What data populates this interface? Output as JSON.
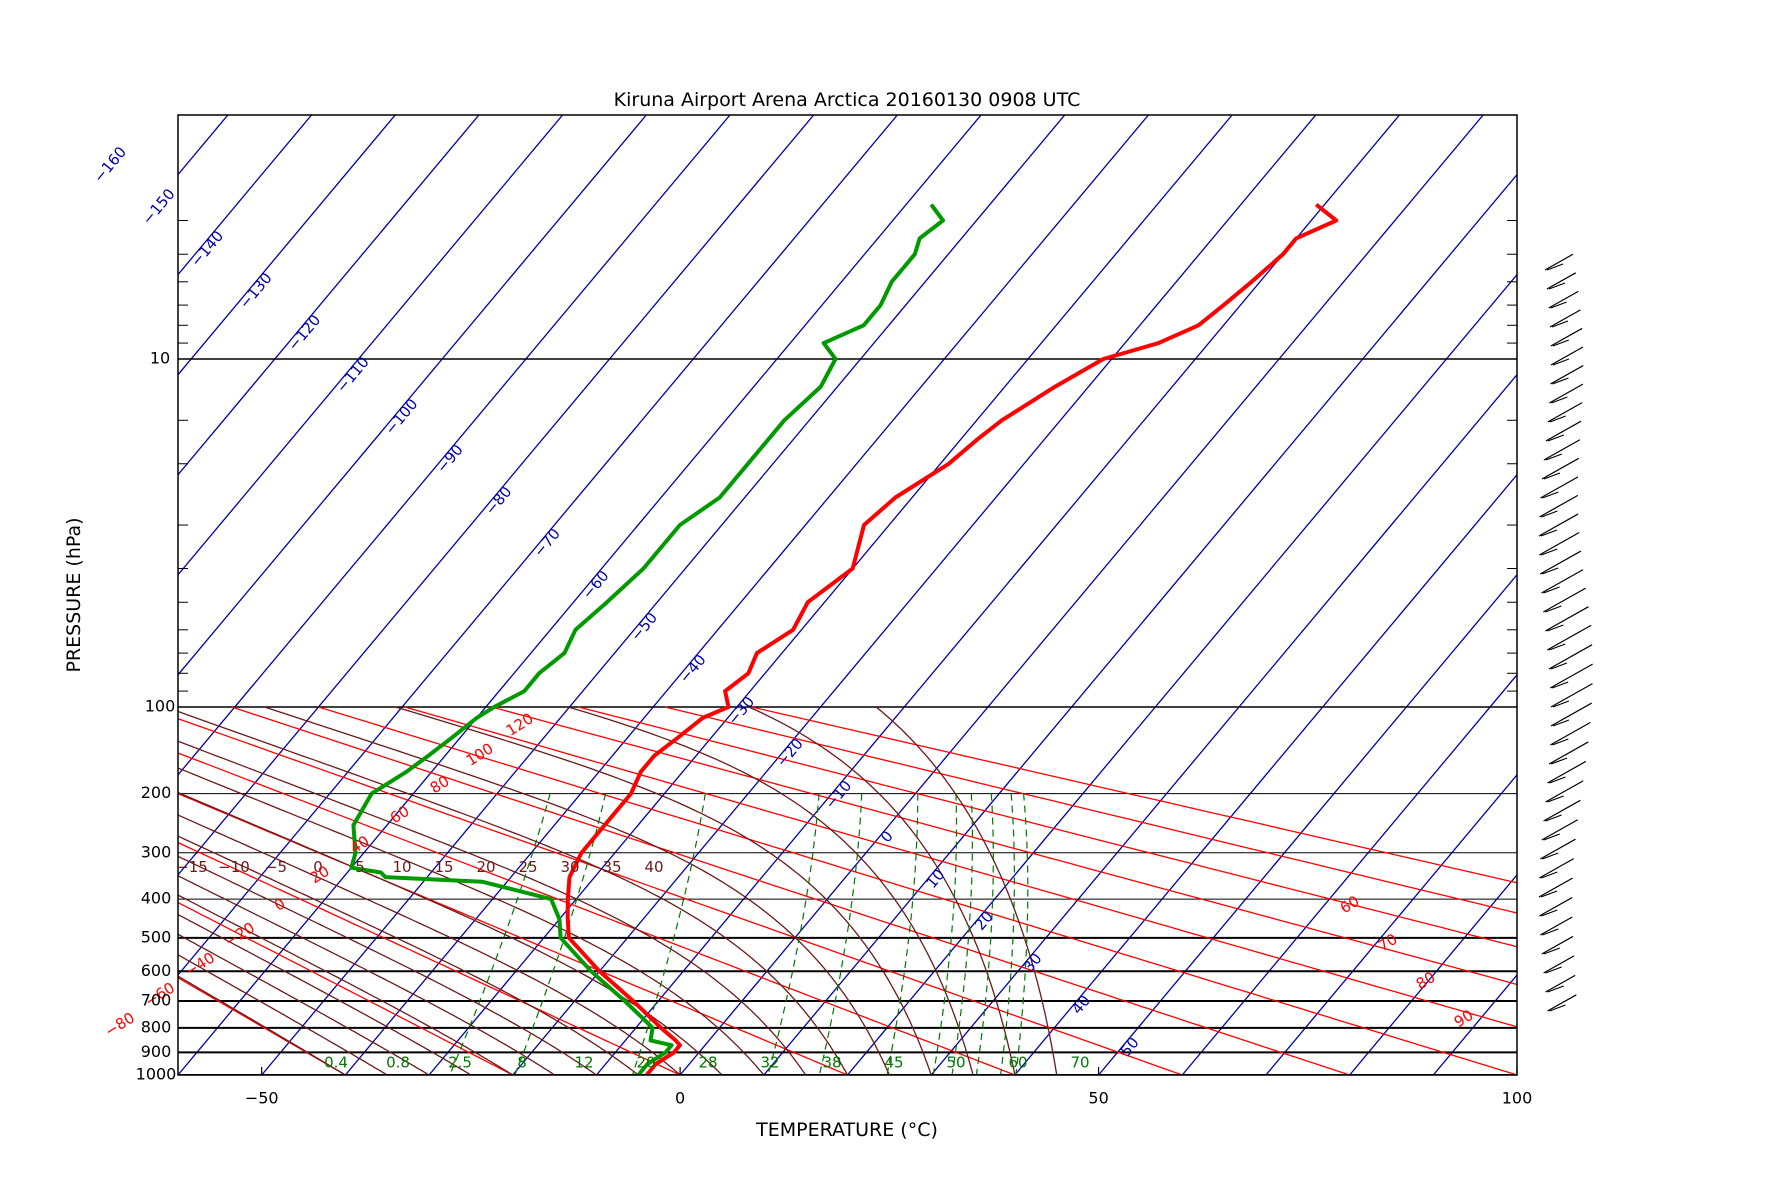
{
  "chart_data": {
    "type": "line",
    "title": "Kiruna Airport Arena Arctica 20160130 0908 UTC",
    "xlabel": "TEMPERATURE (°C)",
    "ylabel": "PRESSURE  (hPa)",
    "xlim": [
      -60,
      100
    ],
    "x_ticks": [
      "-50",
      "0",
      "50",
      "100"
    ],
    "y_scale": "log (upper, 3.3-100 hPa) + pressure^0.286 (lower, 100-1000 hPa)",
    "y_ticks_upper": [
      "10",
      "100"
    ],
    "y_ticks_lower": [
      "200",
      "300",
      "400",
      "500",
      "600",
      "700",
      "800",
      "900",
      "1000"
    ],
    "isotherm_labels": [
      "-160",
      "-150",
      "-140",
      "-130",
      "-120",
      "-110",
      "-100",
      "-90",
      "-80",
      "-70",
      "-60",
      "-50",
      "-40",
      "-30",
      "-20",
      "-10",
      "0",
      "10",
      "20",
      "30",
      "40",
      "50"
    ],
    "isotherm_step": 10,
    "dry_adiabat_labels": [
      "120",
      "100",
      "80",
      "60",
      "40",
      "20",
      "0",
      "-20",
      "-40",
      "-60",
      "-80",
      "60",
      "70",
      "80",
      "90"
    ],
    "saturated_adiabat_labels": [
      "-15",
      "-10",
      "-5",
      "0",
      "5",
      "10",
      "15",
      "20",
      "25",
      "30",
      "35",
      "40"
    ],
    "mixing_ratio_labels": [
      "0.4",
      "0.8",
      "2.5",
      "8",
      "12",
      "20",
      "28",
      "32",
      "38",
      "45",
      "50",
      "60",
      "70"
    ],
    "colors": {
      "temperature": "#ff0000",
      "dewpoint": "#009900",
      "isotherm": "#0000aa",
      "dry_adiabat": "#ff0000",
      "saturated_adiabat": "#6b1a1a",
      "mixing_ratio": "#007700",
      "isobar": "#000000"
    },
    "series": [
      {
        "name": "",
        "kind": "temperature",
        "pressure_hpa": [
          1000,
          950,
          900,
          870,
          850,
          800,
          700,
          600,
          500,
          450,
          400,
          350,
          300,
          250,
          200,
          170,
          150,
          130,
          110,
          100,
          90,
          80,
          70,
          60,
          50,
          40,
          30,
          25,
          20,
          17,
          15,
          12,
          10,
          9,
          8,
          7,
          6,
          5,
          4.5,
          4,
          3.6
        ],
        "temp_c": [
          -4,
          -4,
          -3,
          -3,
          -4,
          -7,
          -13,
          -20,
          -27,
          -29,
          -31,
          -33,
          -34,
          -34,
          -34,
          -35,
          -35,
          -34,
          -33,
          -31,
          -33,
          -32,
          -33,
          -31,
          -32,
          -30,
          -33,
          -32,
          -29,
          -28,
          -27,
          -24,
          -21,
          -16,
          -13,
          -12,
          -11,
          -10,
          -10,
          -7,
          -11
        ]
      },
      {
        "name": "",
        "kind": "dewpoint",
        "pressure_hpa": [
          1000,
          950,
          900,
          870,
          850,
          800,
          700,
          600,
          500,
          450,
          400,
          360,
          350,
          340,
          330,
          300,
          250,
          200,
          170,
          150,
          130,
          110,
          100,
          90,
          80,
          70,
          60,
          50,
          40,
          30,
          25,
          20,
          15,
          12,
          10,
          9,
          8,
          7,
          6,
          5,
          4.5,
          4,
          3.6
        ],
        "temp_c": [
          -5,
          -5,
          -4,
          -4,
          -7,
          -8,
          -14,
          -21,
          -28,
          -30,
          -33,
          -43,
          -55,
          -56,
          -60,
          -61,
          -64,
          -65,
          -63,
          -62,
          -61,
          -60,
          -59,
          -57,
          -57,
          -56,
          -57,
          -56,
          -55,
          -55,
          -53,
          -53,
          -53,
          -52,
          -53,
          -56,
          -53,
          -53,
          -54,
          -54,
          -55,
          -54,
          -57
        ]
      }
    ]
  }
}
